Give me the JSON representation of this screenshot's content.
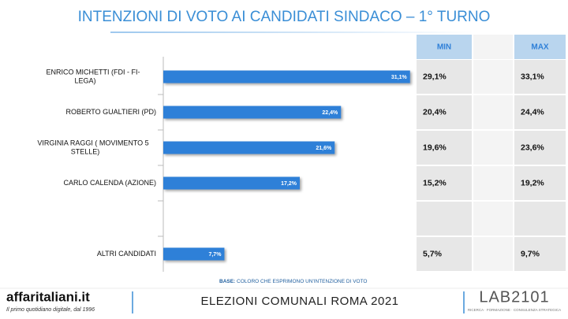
{
  "chart_data": {
    "type": "bar",
    "orientation": "horizontal",
    "title": "INTENZIONI DI VOTO AI CANDIDATI SINDACO – 1° TURNO",
    "categories": [
      "ENRICO MICHETTI (FDI - FI- LEGA)",
      "ROBERTO GUALTIERI (PD)",
      "VIRGINIA RAGGI ( MOVIMENTO 5 STELLE)",
      "CARLO CALENDA (AZIONE)",
      null,
      "ALTRI CANDIDATI"
    ],
    "values": [
      31.1,
      22.4,
      21.6,
      17.2,
      null,
      7.7
    ],
    "value_labels": [
      "31,1%",
      "22,4%",
      "21,6%",
      "17,2%",
      null,
      "7,7%"
    ],
    "color": "#2f80d8",
    "xlim": [
      0,
      35
    ],
    "table": {
      "headers": [
        "MIN",
        "MAX"
      ],
      "rows": [
        [
          "29,1%",
          "33,1%"
        ],
        [
          "20,4%",
          "24,4%"
        ],
        [
          "19,6%",
          "23,6%"
        ],
        [
          "15,2%",
          "19,2%"
        ],
        [
          null,
          null
        ],
        [
          "5,7%",
          "9,7%"
        ]
      ]
    },
    "note_label": "BASE:",
    "note": "COLORO CHE ESPRIMONO UN'INTENZIONE DI VOTO",
    "footer": {
      "brand": "affaritaliani.it",
      "tagline": "Il primo quotidiano digitale, dal 1996",
      "center": "ELEZIONI COMUNALI ROMA 2021",
      "lab": "LAB2101",
      "lab_tagline": "RICERCA · FORMAZIONE · CONSULENZA STRATEGICA"
    }
  }
}
